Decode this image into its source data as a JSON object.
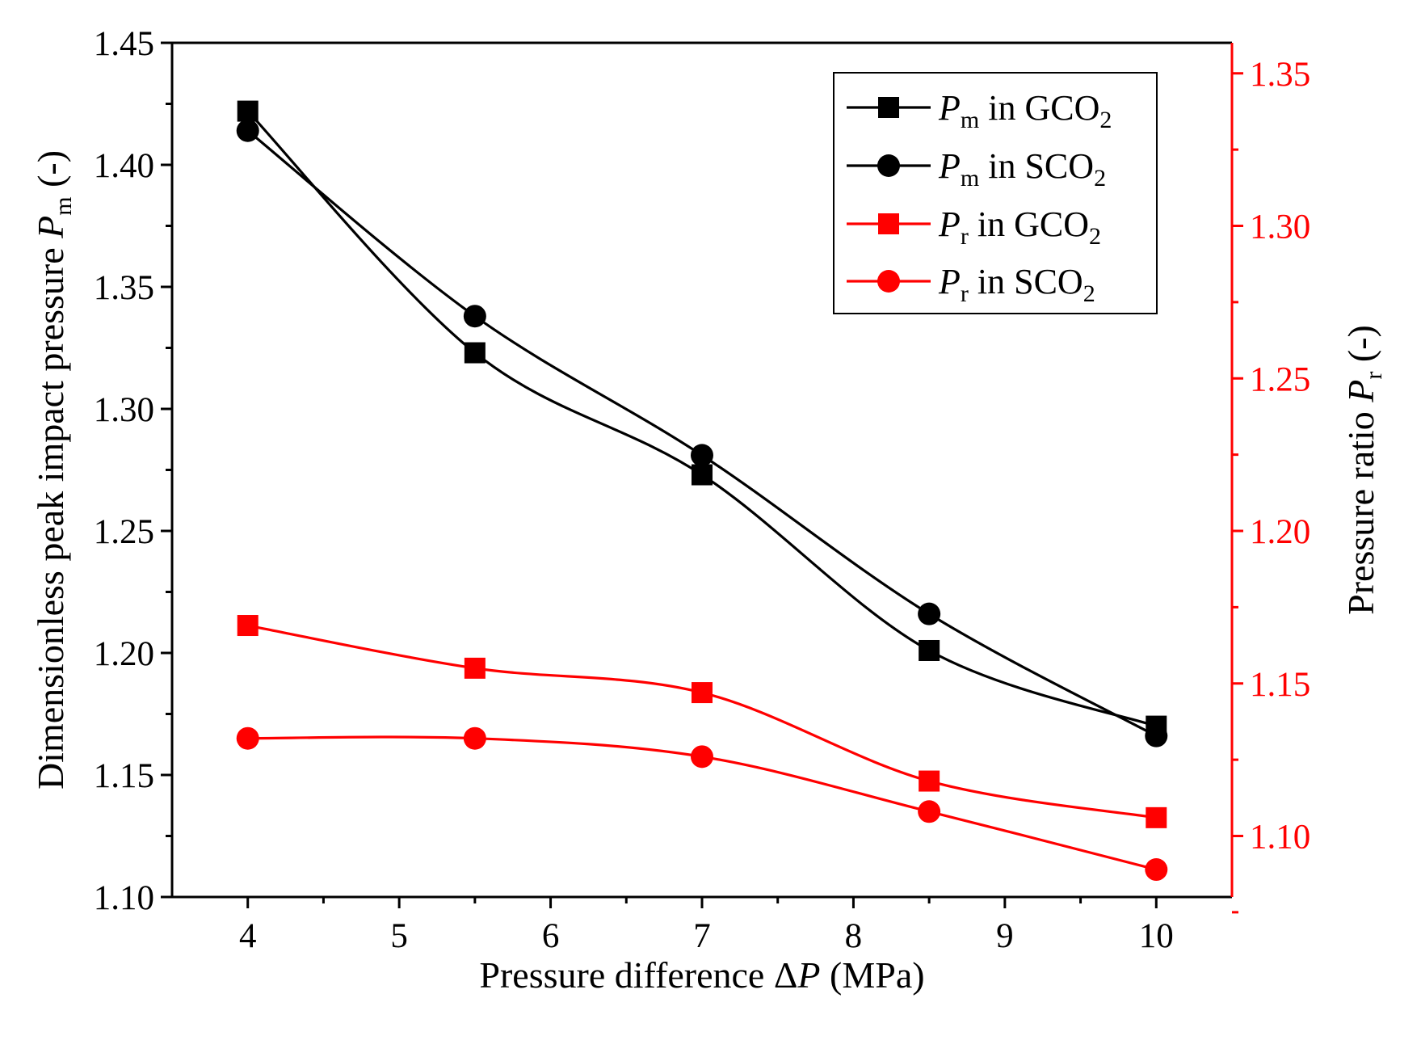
{
  "chart_data": {
    "type": "line",
    "title": "",
    "x": [
      4,
      5.5,
      7,
      8.5,
      10
    ],
    "xlabel": {
      "pre": "Pressure difference Δ",
      "var": "P",
      "post": " (MPa)"
    },
    "xlim": [
      3.5,
      10.5
    ],
    "xticks": [
      4,
      5,
      6,
      7,
      8,
      9,
      10
    ],
    "y_left": {
      "label": {
        "pre": "Dimensionless peak impact pressure ",
        "var": "P",
        "sub": "m",
        "post": " (-)"
      },
      "lim": [
        1.1,
        1.45
      ],
      "ticks": [
        "1.10",
        "1.15",
        "1.20",
        "1.25",
        "1.30",
        "1.35",
        "1.40",
        "1.45"
      ],
      "color": "#000000"
    },
    "y_right": {
      "label": {
        "pre": "Pressure ratio ",
        "var": "P",
        "sub": "r",
        "post": " (-)"
      },
      "lim": [
        1.08,
        1.36
      ],
      "ticks": [
        "1.10",
        "1.15",
        "1.20",
        "1.25",
        "1.30",
        "1.35"
      ],
      "color": "#ff0000"
    },
    "series": [
      {
        "name": "Pm in GCO2",
        "var": "P",
        "sub": "m",
        "medium": "GCO",
        "medium_sub": "2",
        "axis": "left",
        "marker": "square",
        "color": "#000000",
        "values": [
          1.422,
          1.323,
          1.273,
          1.201,
          1.17
        ]
      },
      {
        "name": "Pm in SCO2",
        "var": "P",
        "sub": "m",
        "medium": "SCO",
        "medium_sub": "2",
        "axis": "left",
        "marker": "circle",
        "color": "#000000",
        "values": [
          1.414,
          1.338,
          1.281,
          1.216,
          1.166
        ]
      },
      {
        "name": "Pr in GCO2",
        "var": "P",
        "sub": "r",
        "medium": "GCO",
        "medium_sub": "2",
        "axis": "right",
        "marker": "square",
        "color": "#ff0000",
        "values": [
          1.169,
          1.155,
          1.147,
          1.118,
          1.106
        ]
      },
      {
        "name": "Pr in SCO2",
        "var": "P",
        "sub": "r",
        "medium": "SCO",
        "medium_sub": "2",
        "axis": "right",
        "marker": "circle",
        "color": "#ff0000",
        "values": [
          1.132,
          1.132,
          1.126,
          1.108,
          1.089
        ]
      }
    ],
    "legend": {
      "position": "top-right",
      "connector": "in"
    },
    "grid": false
  }
}
